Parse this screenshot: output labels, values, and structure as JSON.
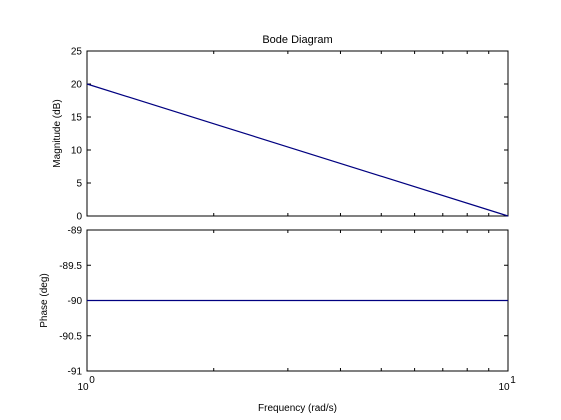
{
  "chart_data": {
    "type": "line",
    "title": "Bode Diagram",
    "xlabel": "Frequency  (rad/s)",
    "x_scale": "log",
    "xlim": [
      1,
      10
    ],
    "x_ticks": [
      {
        "value": 1,
        "base": "10",
        "exp": "0"
      },
      {
        "value": 10,
        "base": "10",
        "exp": "1"
      }
    ],
    "line_color": "#000080",
    "panels": [
      {
        "ylabel": "Magnitude (dB)",
        "ylim": [
          0,
          25
        ],
        "y_ticks": [
          0,
          5,
          10,
          15,
          20,
          25
        ],
        "y_tick_labels": [
          "0",
          "5",
          "10",
          "15",
          "20",
          "25"
        ],
        "series": [
          {
            "x": [
              1,
              10
            ],
            "y": [
              20,
              0
            ]
          }
        ]
      },
      {
        "ylabel": "Phase (deg)",
        "ylim": [
          -91,
          -89
        ],
        "y_ticks": [
          -91,
          -90.5,
          -90,
          -89.5,
          -89
        ],
        "y_tick_labels": [
          "-91",
          "-90.5",
          "-90",
          "-89.5",
          "-89"
        ],
        "series": [
          {
            "x": [
              1,
              10
            ],
            "y": [
              -90,
              -90
            ]
          }
        ]
      }
    ]
  }
}
